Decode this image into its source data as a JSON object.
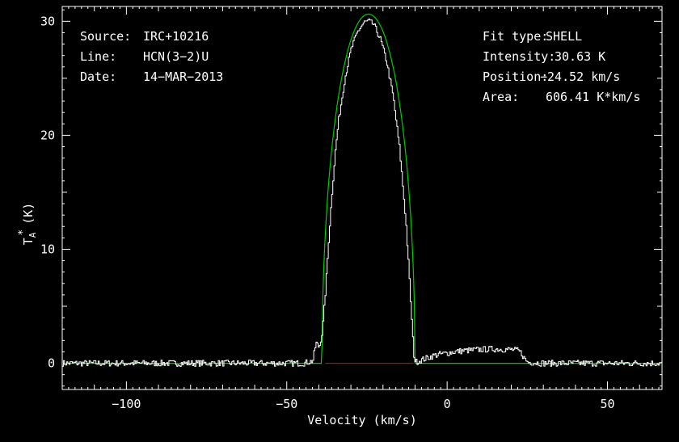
{
  "chart_data": {
    "type": "line",
    "xlabel": "Velocity (km/s)",
    "ylabel_main": "T",
    "ylabel_sub": "A",
    "ylabel_sup": "*",
    "ylabel_unit": "(K)",
    "xlim": [
      -120,
      67
    ],
    "ylim": [
      -2.3,
      31.3
    ],
    "xticks": [
      -100,
      -50,
      0,
      50
    ],
    "xtick_labels": [
      "−100",
      "−50",
      "0",
      "50"
    ],
    "yticks": [
      0,
      10,
      20,
      30
    ],
    "ytick_labels": [
      "0",
      "10",
      "20",
      "30"
    ],
    "info_left": [
      {
        "key": "Source:",
        "value": "IRC+10216"
      },
      {
        "key": "Line:",
        "value": "HCN(3−2)U"
      },
      {
        "key": "Date:",
        "value": "14−MAR−2013"
      }
    ],
    "info_right": [
      {
        "key": "Fit type:",
        "value": "SHELL"
      },
      {
        "key": "Intensity:",
        "value": "30.63 K"
      },
      {
        "key": "Position:",
        "value": "−24.52 km/s"
      },
      {
        "key": "Area:",
        "value": "606.41 K*km/s"
      }
    ],
    "series": [
      {
        "role": "observed",
        "color": "#ffffff",
        "x": [
          -120,
          -110,
          -100,
          -90,
          -80,
          -70,
          -60,
          -50,
          -45,
          -42,
          -41,
          -40,
          -39,
          -38,
          -37,
          -36,
          -35,
          -34,
          -32,
          -30,
          -28,
          -26,
          -24.5,
          -23,
          -21,
          -19,
          -17,
          -15,
          -13,
          -12,
          -11,
          -10.5,
          -10,
          -8,
          -6,
          -4,
          -2,
          0,
          2,
          5,
          8,
          10,
          15,
          20,
          22,
          23,
          24,
          25,
          30,
          40,
          50,
          60,
          67
        ],
        "y": [
          0,
          0,
          0,
          0,
          0,
          0,
          0,
          0,
          0,
          0.2,
          1.8,
          1.4,
          2.8,
          6.5,
          11,
          15,
          18.5,
          21.2,
          25,
          27.6,
          29.1,
          29.9,
          30,
          29.7,
          28.5,
          26.5,
          23.5,
          19,
          12.5,
          8,
          3,
          0.8,
          0.1,
          0.3,
          0.5,
          0.7,
          0.8,
          0.9,
          1,
          1.1,
          1.15,
          1.2,
          1.25,
          1.2,
          1.1,
          0.9,
          0.4,
          0.1,
          0,
          0,
          0,
          0,
          0
        ]
      },
      {
        "role": "fit",
        "color": "#00cc00",
        "shell_center": -24.52,
        "shell_peak": 30.63,
        "shell_halfwidth": 14.5
      },
      {
        "role": "baseline",
        "color": "#ff0000",
        "x": [
          -38,
          -10.5
        ],
        "y": [
          0,
          0
        ]
      }
    ]
  }
}
